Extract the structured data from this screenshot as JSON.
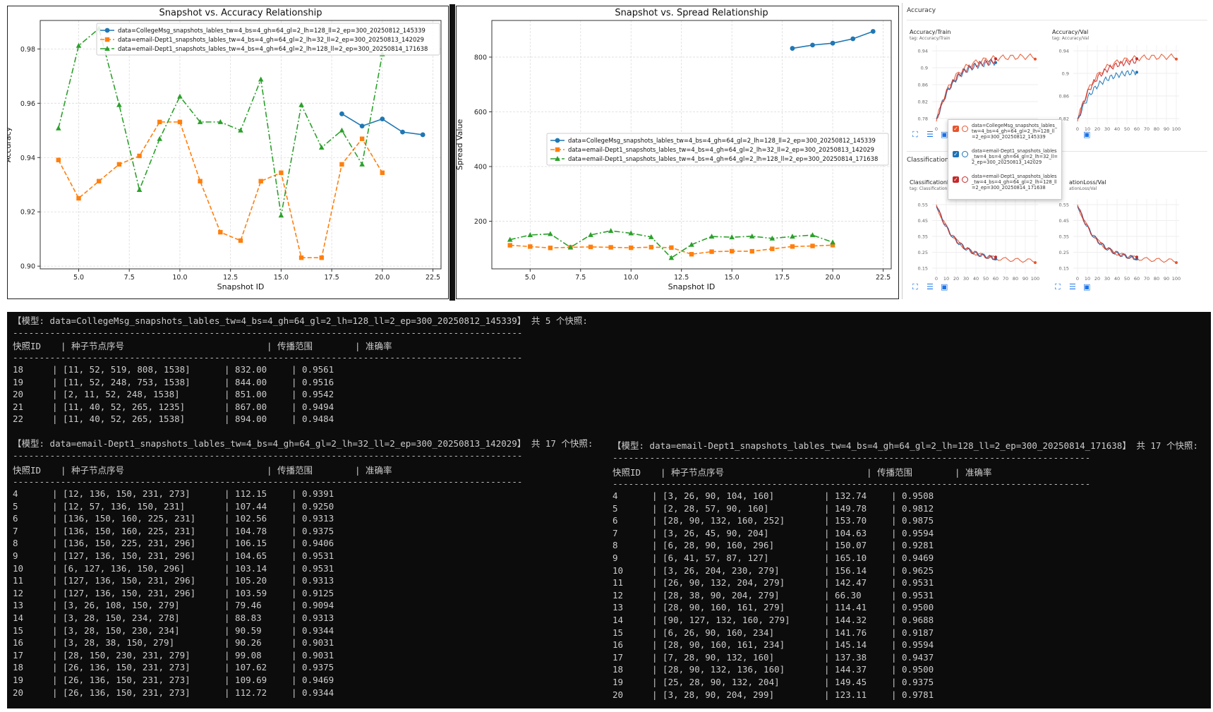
{
  "chart_data": [
    {
      "type": "line",
      "title": "Snapshot vs. Accuracy Relationship",
      "xlabel": "Snapshot ID",
      "ylabel": "Accuracy",
      "xlim": [
        3.1,
        22.9
      ],
      "ylim": [
        0.899,
        0.9905
      ],
      "xticks": [
        5.0,
        7.5,
        10.0,
        12.5,
        15.0,
        17.5,
        20.0,
        22.5
      ],
      "xtick_labels": [
        "5.0",
        "7.5",
        "10.0",
        "12.5",
        "15.0",
        "17.5",
        "20.0",
        "22.5"
      ],
      "yticks": [
        0.9,
        0.92,
        0.94,
        0.96,
        0.98
      ],
      "ytick_labels": [
        "0.90",
        "0.92",
        "0.94",
        "0.96",
        "0.98"
      ],
      "grid": true,
      "legend_position": "top-right",
      "series": [
        {
          "name": "data=CollegeMsg_snapshots_lables_tw=4_bs=4_gh=64_gl=2_lh=128_ll=2_ep=300_20250812_145339",
          "color": "#1f77b4",
          "marker": "circle",
          "dash": "",
          "x": [
            18,
            19,
            20,
            21,
            22
          ],
          "y": [
            0.9561,
            0.9516,
            0.9542,
            0.9494,
            0.9484
          ]
        },
        {
          "name": "data=email-Dept1_snapshots_lables_tw=4_bs=4_gh=64_gl=2_lh=32_ll=2_ep=300_20250813_142029",
          "color": "#ff7f0e",
          "marker": "square",
          "dash": "6,3",
          "x": [
            4,
            5,
            6,
            7,
            8,
            9,
            10,
            11,
            12,
            13,
            14,
            15,
            16,
            17,
            18,
            19,
            20
          ],
          "y": [
            0.9391,
            0.925,
            0.9313,
            0.9375,
            0.9406,
            0.9531,
            0.9531,
            0.9313,
            0.9125,
            0.9094,
            0.9313,
            0.9344,
            0.9031,
            0.9031,
            0.9375,
            0.9469,
            0.9344
          ]
        },
        {
          "name": "data=email-Dept1_snapshots_lables_tw=4_bs=4_gh=64_gl=2_lh=128_ll=2_ep=300_20250814_171638",
          "color": "#2ca02c",
          "marker": "triangle",
          "dash": "8,3,2,3",
          "x": [
            4,
            5,
            6,
            7,
            8,
            9,
            10,
            11,
            12,
            13,
            14,
            15,
            16,
            17,
            18,
            19,
            20
          ],
          "y": [
            0.9508,
            0.9812,
            0.9875,
            0.9594,
            0.9281,
            0.9469,
            0.9625,
            0.9531,
            0.9531,
            0.95,
            0.9688,
            0.9187,
            0.9594,
            0.9437,
            0.95,
            0.9375,
            0.9781
          ]
        }
      ]
    },
    {
      "type": "line",
      "title": "Snapshot vs. Spread Relationship",
      "xlabel": "Snapshot ID",
      "ylabel": "Spread Value",
      "xlim": [
        3.1,
        22.9
      ],
      "ylim": [
        26,
        934
      ],
      "xticks": [
        5.0,
        7.5,
        10.0,
        12.5,
        15.0,
        17.5,
        20.0,
        22.5
      ],
      "xtick_labels": [
        "5.0",
        "7.5",
        "10.0",
        "12.5",
        "15.0",
        "17.5",
        "20.0",
        "22.5"
      ],
      "yticks": [
        200,
        400,
        600,
        800
      ],
      "ytick_labels": [
        "200",
        "400",
        "600",
        "800"
      ],
      "grid": true,
      "legend_position": "center-right",
      "series": [
        {
          "name": "data=CollegeMsg_snapshots_lables_tw=4_bs=4_gh=64_gl=2_lh=128_ll=2_ep=300_20250812_145339",
          "color": "#1f77b4",
          "marker": "circle",
          "dash": "",
          "x": [
            18,
            19,
            20,
            21,
            22
          ],
          "y": [
            832.0,
            844.0,
            851.0,
            867.0,
            894.0
          ]
        },
        {
          "name": "data=email-Dept1_snapshots_lables_tw=4_bs=4_gh=64_gl=2_lh=32_ll=2_ep=300_20250813_142029",
          "color": "#ff7f0e",
          "marker": "square",
          "dash": "6,3",
          "x": [
            4,
            5,
            6,
            7,
            8,
            9,
            10,
            11,
            12,
            13,
            14,
            15,
            16,
            17,
            18,
            19,
            20
          ],
          "y": [
            112.15,
            107.44,
            102.56,
            104.78,
            106.15,
            104.65,
            103.14,
            105.2,
            103.59,
            79.46,
            88.83,
            90.59,
            90.26,
            99.08,
            107.62,
            109.69,
            112.72
          ]
        },
        {
          "name": "data=email-Dept1_snapshots_lables_tw=4_bs=4_gh=64_gl=2_lh=128_ll=2_ep=300_20250814_171638",
          "color": "#2ca02c",
          "marker": "triangle",
          "dash": "8,3,2,3",
          "x": [
            4,
            5,
            6,
            7,
            8,
            9,
            10,
            11,
            12,
            13,
            14,
            15,
            16,
            17,
            18,
            19,
            20
          ],
          "y": [
            132.74,
            149.78,
            153.7,
            104.63,
            150.07,
            165.1,
            156.14,
            142.47,
            66.3,
            114.41,
            144.32,
            141.76,
            145.14,
            137.38,
            144.37,
            149.45,
            123.11
          ]
        }
      ]
    }
  ],
  "tensorboard": {
    "section_accuracy": "Accuracy",
    "section_loss": "ClassificationLo",
    "charts": [
      {
        "title": "Accuracy/Train",
        "tag": "tag: Accuracy/Train",
        "yticks": [
          "0.94",
          "0.9",
          "0.86",
          "0.82",
          "0.78"
        ],
        "xticks": [
          "0"
        ]
      },
      {
        "title": "Accuracy/Val",
        "tag": "tag: Accuracy/Val",
        "yticks": [
          "0.94",
          "0.9",
          "0.86",
          "0.82"
        ],
        "xticks": [
          "0",
          "10",
          "20",
          "30",
          "40",
          "50",
          "60",
          "70",
          "80",
          "90",
          "100"
        ]
      },
      {
        "title": "ClassificationLo",
        "tag": "tag: Classification",
        "yticks": [
          "0.55",
          "0.45",
          "0.35",
          "0.25",
          "0.15"
        ],
        "xticks": [
          "0",
          "10",
          "20",
          "30",
          "40",
          "50",
          "60",
          "70",
          "80",
          "90",
          "100"
        ]
      },
      {
        "title": "ationLoss/Val",
        "tag": "ationLoss/Val",
        "yticks": [
          "0.55",
          "0.45",
          "0.35",
          "0.25",
          "0.15"
        ],
        "xticks": [
          "0",
          "10",
          "20",
          "30",
          "40",
          "50",
          "60",
          "70",
          "80",
          "90",
          "100"
        ]
      }
    ],
    "tooltip": [
      {
        "text": "data=CollegeMsg_snapshots_lables_tw=4_bs=4_gh=64_gl=2_lh=128_ll=2_ep=300_20250812_145339",
        "color": "#e8542c"
      },
      {
        "text": "data=email-Dept1_snapshots_lables_tw=4_bs=4_gh=64_gl=2_lh=32_ll=2_ep=300_20250813_142029",
        "color": "#1a73b8"
      },
      {
        "text": "data=email-Dept1_snapshots_lables_tw=4_bs=4_gh=64_gl=2_lh=128_ll=2_ep=300_20250814_171638",
        "color": "#c62828"
      }
    ]
  },
  "terminal": {
    "dash_line": "------------------------------------------------------------------------------------------------",
    "dash_line_short": "------------------------------------------------------------------------------------------",
    "col_headers": [
      "快照ID",
      "| 种子节点序号",
      "| 传播范围",
      "| 准确率"
    ],
    "model1": {
      "header": "【模型: data=CollegeMsg_snapshots_lables_tw=4_bs=4_gh=64_gl=2_lh=128_ll=2_ep=300_20250812_145339】 共 5 个快照:",
      "rows": [
        [
          "18",
          "| [11, 52, 519, 808, 1538]",
          "| 832.00",
          "| 0.9561"
        ],
        [
          "19",
          "| [11, 52, 248, 753, 1538]",
          "| 844.00",
          "| 0.9516"
        ],
        [
          "20",
          "| [2, 11, 52, 248, 1538]",
          "| 851.00",
          "| 0.9542"
        ],
        [
          "21",
          "| [11, 40, 52, 265, 1235]",
          "| 867.00",
          "| 0.9494"
        ],
        [
          "22",
          "| [11, 40, 52, 265, 1538]",
          "| 894.00",
          "| 0.9484"
        ]
      ]
    },
    "model2": {
      "header": "【模型: data=email-Dept1_snapshots_lables_tw=4_bs=4_gh=64_gl=2_lh=32_ll=2_ep=300_20250813_142029】 共 17 个快照:",
      "rows": [
        [
          "4",
          "| [12, 136, 150, 231, 273]",
          "| 112.15",
          "| 0.9391"
        ],
        [
          "5",
          "| [12, 57, 136, 150, 231]",
          "| 107.44",
          "| 0.9250"
        ],
        [
          "6",
          "| [136, 150, 160, 225, 231]",
          "| 102.56",
          "| 0.9313"
        ],
        [
          "7",
          "| [136, 150, 160, 225, 231]",
          "| 104.78",
          "| 0.9375"
        ],
        [
          "8",
          "| [136, 150, 225, 231, 296]",
          "| 106.15",
          "| 0.9406"
        ],
        [
          "9",
          "| [127, 136, 150, 231, 296]",
          "| 104.65",
          "| 0.9531"
        ],
        [
          "10",
          "| [6, 127, 136, 150, 296]",
          "| 103.14",
          "| 0.9531"
        ],
        [
          "11",
          "| [127, 136, 150, 231, 296]",
          "| 105.20",
          "| 0.9313"
        ],
        [
          "12",
          "| [127, 136, 150, 231, 296]",
          "| 103.59",
          "| 0.9125"
        ],
        [
          "13",
          "| [3, 26, 108, 150, 279]",
          "| 79.46",
          "| 0.9094"
        ],
        [
          "14",
          "| [3, 28, 150, 234, 278]",
          "| 88.83",
          "| 0.9313"
        ],
        [
          "15",
          "| [3, 28, 150, 230, 234]",
          "| 90.59",
          "| 0.9344"
        ],
        [
          "16",
          "| [3, 28, 38, 150, 279]",
          "| 90.26",
          "| 0.9031"
        ],
        [
          "17",
          "| [28, 150, 230, 231, 279]",
          "| 99.08",
          "| 0.9031"
        ],
        [
          "18",
          "| [26, 136, 150, 231, 273]",
          "| 107.62",
          "| 0.9375"
        ],
        [
          "19",
          "| [26, 136, 150, 231, 273]",
          "| 109.69",
          "| 0.9469"
        ],
        [
          "20",
          "| [26, 136, 150, 231, 273]",
          "| 112.72",
          "| 0.9344"
        ]
      ]
    },
    "model3": {
      "header": "【模型: data=email-Dept1_snapshots_lables_tw=4_bs=4_gh=64_gl=2_lh=128_ll=2_ep=300_20250814_171638】 共 17 个快照:",
      "rows": [
        [
          "4",
          "| [3, 26, 90, 104, 160]",
          "| 132.74",
          "| 0.9508"
        ],
        [
          "5",
          "| [2, 28, 57, 90, 160]",
          "| 149.78",
          "| 0.9812"
        ],
        [
          "6",
          "| [28, 90, 132, 160, 252]",
          "| 153.70",
          "| 0.9875"
        ],
        [
          "7",
          "| [3, 26, 45, 90, 204]",
          "| 104.63",
          "| 0.9594"
        ],
        [
          "8",
          "| [6, 28, 90, 160, 296]",
          "| 150.07",
          "| 0.9281"
        ],
        [
          "9",
          "| [6, 41, 57, 87, 127]",
          "| 165.10",
          "| 0.9469"
        ],
        [
          "10",
          "| [3, 26, 204, 230, 279]",
          "| 156.14",
          "| 0.9625"
        ],
        [
          "11",
          "| [26, 90, 132, 204, 279]",
          "| 142.47",
          "| 0.9531"
        ],
        [
          "12",
          "| [28, 38, 90, 204, 279]",
          "| 66.30",
          "| 0.9531"
        ],
        [
          "13",
          "| [28, 90, 160, 161, 279]",
          "| 114.41",
          "| 0.9500"
        ],
        [
          "14",
          "| [90, 127, 132, 160, 279]",
          "| 144.32",
          "| 0.9688"
        ],
        [
          "15",
          "| [6, 26, 90, 160, 234]",
          "| 141.76",
          "| 0.9187"
        ],
        [
          "16",
          "| [28, 90, 160, 161, 234]",
          "| 145.14",
          "| 0.9594"
        ],
        [
          "17",
          "| [7, 28, 90, 132, 160]",
          "| 137.38",
          "| 0.9437"
        ],
        [
          "18",
          "| [28, 90, 132, 136, 160]",
          "| 144.37",
          "| 0.9500"
        ],
        [
          "19",
          "| [25, 28, 90, 132, 204]",
          "| 149.45",
          "| 0.9375"
        ],
        [
          "20",
          "| [3, 28, 90, 204, 299]",
          "| 123.11",
          "| 0.9781"
        ]
      ]
    }
  }
}
